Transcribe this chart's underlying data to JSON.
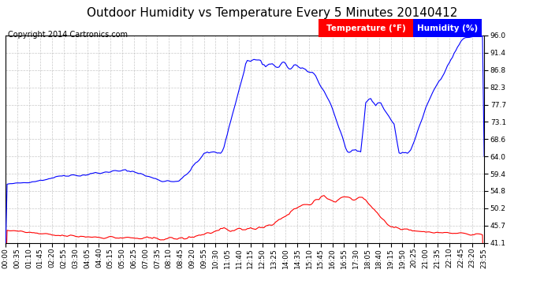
{
  "title": "Outdoor Humidity vs Temperature Every 5 Minutes 20140412",
  "copyright": "Copyright 2014 Cartronics.com",
  "legend_temp": "Temperature (°F)",
  "legend_hum": "Humidity (%)",
  "temp_color": "#0000FF",
  "hum_color": "#FF0000",
  "legend_temp_bg": "#FF0000",
  "legend_hum_bg": "#0000FF",
  "bg_color": "#FFFFFF",
  "grid_color": "#BBBBBB",
  "ylim": [
    41.1,
    96.0
  ],
  "yticks": [
    41.1,
    45.7,
    50.2,
    54.8,
    59.4,
    64.0,
    68.6,
    73.1,
    77.7,
    82.3,
    86.8,
    91.4,
    96.0
  ],
  "title_fontsize": 11,
  "copyright_fontsize": 7,
  "tick_fontsize": 6.5,
  "legend_fontsize": 7.5,
  "n_points": 288,
  "x_tick_every": 7
}
